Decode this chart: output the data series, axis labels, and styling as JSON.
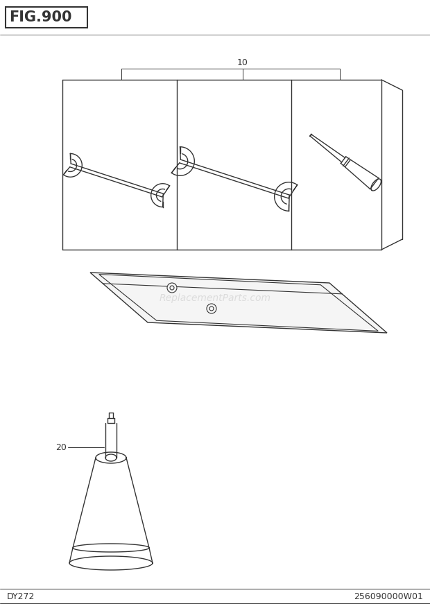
{
  "title": "FIG.900",
  "bottom_left": "DY272",
  "bottom_right": "256090000W01",
  "bg_color": "#ffffff",
  "line_color": "#333333",
  "watermark": "ReplacementParts.com",
  "label_10": "10",
  "label_20": "20"
}
